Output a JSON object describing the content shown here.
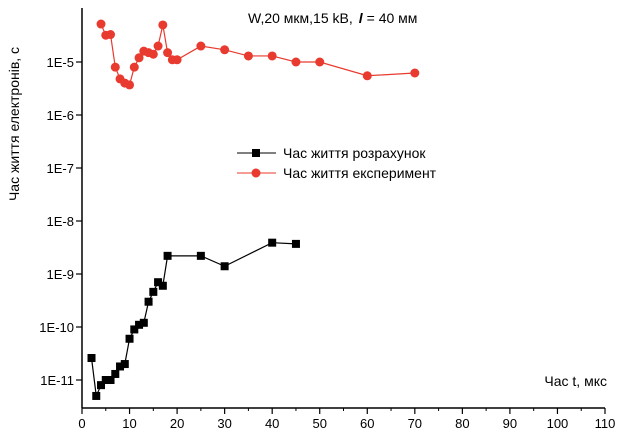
{
  "chart_data": {
    "type": "scatter",
    "annotation": "W,20 мкм,15 kB,",
    "annotation_l": "l",
    "annotation_l_value": "= 40 мм",
    "xlabel": "Час t, мкс",
    "ylabel": "Час життя електронів, с",
    "xlim": [
      0,
      110
    ],
    "ylog": true,
    "ylim": [
      5e-12,
      0.0001
    ],
    "x_ticks": [
      0,
      10,
      20,
      30,
      40,
      50,
      60,
      70,
      80,
      90,
      100,
      110
    ],
    "x_tick_labels": [
      "0",
      "10",
      "20",
      "30",
      "40",
      "50",
      "60",
      "70",
      "80",
      "90",
      "100",
      "110"
    ],
    "y_ticks": [
      1e-11,
      1e-10,
      1e-09,
      1e-08,
      1e-07,
      1e-06,
      1e-05
    ],
    "y_tick_labels": [
      "1E-11",
      "1E-10",
      "1E-9",
      "1E-8",
      "1E-7",
      "1E-6",
      "1E-5"
    ],
    "legend_position": "center",
    "series": [
      {
        "name": "Час життя розрахунок",
        "color": "#000000",
        "marker": "square",
        "x": [
          2,
          3,
          4,
          5,
          6,
          7,
          8,
          9,
          10,
          11,
          12,
          13,
          14,
          15,
          16,
          17,
          18,
          25,
          30,
          40,
          45
        ],
        "y": [
          2.6e-11,
          5e-12,
          8e-12,
          1e-11,
          1e-11,
          1.3e-11,
          1.8e-11,
          2e-11,
          6e-11,
          9e-11,
          1.1e-10,
          1.2e-10,
          3e-10,
          4.6e-10,
          7e-10,
          6e-10,
          2.2e-09,
          2.2e-09,
          1.4e-09,
          3.9e-09,
          3.7e-09
        ]
      },
      {
        "name": "Час життя експеримент",
        "color": "#e83a2e",
        "marker": "circle",
        "x": [
          4,
          5,
          6,
          7,
          8,
          9,
          10,
          11,
          12,
          13,
          14,
          15,
          16,
          17,
          18,
          19,
          20,
          25,
          30,
          35,
          40,
          45,
          50,
          60,
          70
        ],
        "y": [
          5.2e-05,
          3.2e-05,
          3.3e-05,
          8e-06,
          4.8e-06,
          4e-06,
          3.7e-06,
          8e-06,
          1.2e-05,
          1.6e-05,
          1.5e-05,
          1.4e-05,
          2e-05,
          5e-05,
          1.5e-05,
          1.1e-05,
          1.1e-05,
          2e-05,
          1.7e-05,
          1.3e-05,
          1.3e-05,
          1e-05,
          1e-05,
          5.5e-06,
          6.2e-06
        ]
      }
    ]
  }
}
